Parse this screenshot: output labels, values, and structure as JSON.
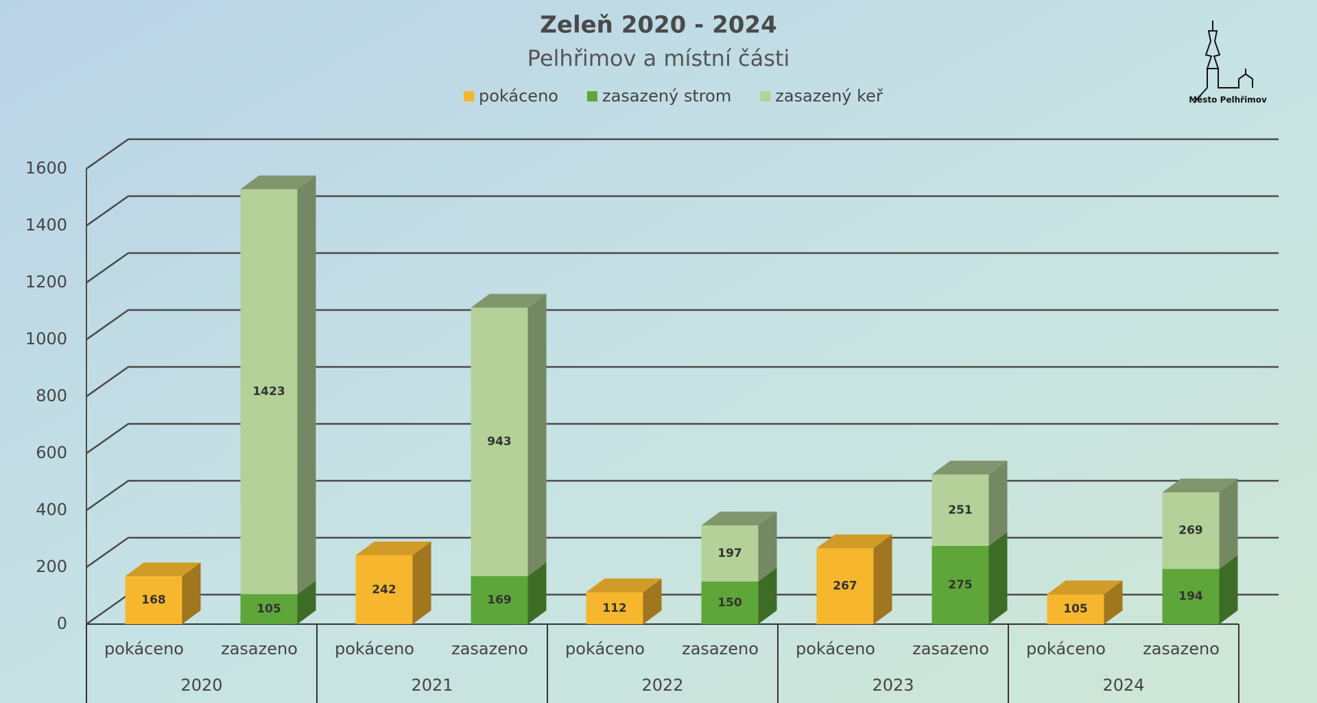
{
  "logo": "Město Pelhřimov",
  "chart_data": {
    "type": "bar3d_stacked",
    "title": "Zeleň 2020 - 2024",
    "subtitle": "Pelhřimov a místní části",
    "categories": [
      "pokáceno",
      "zasazeno",
      "pokáceno",
      "zasazeno",
      "pokáceno",
      "zasazeno",
      "pokáceno",
      "zasazeno",
      "pokáceno",
      "zasazeno"
    ],
    "groups": [
      "2020",
      "2021",
      "2022",
      "2023",
      "2024"
    ],
    "series": [
      {
        "name": "pokáceno",
        "color": "#f6b62e",
        "values": [
          168,
          null,
          242,
          null,
          112,
          null,
          267,
          null,
          105,
          null
        ]
      },
      {
        "name": "zasazený strom",
        "color": "#5ea63a",
        "values": [
          null,
          105,
          null,
          169,
          null,
          150,
          null,
          275,
          null,
          194
        ]
      },
      {
        "name": "zasazený keř",
        "color": "#b3d198",
        "values": [
          null,
          1423,
          null,
          943,
          null,
          197,
          null,
          251,
          null,
          269
        ]
      }
    ],
    "ylim": [
      0,
      1600
    ],
    "yticks": [
      0,
      200,
      400,
      600,
      800,
      1000,
      1200,
      1400,
      1600
    ],
    "grid": true,
    "legend": "top"
  }
}
